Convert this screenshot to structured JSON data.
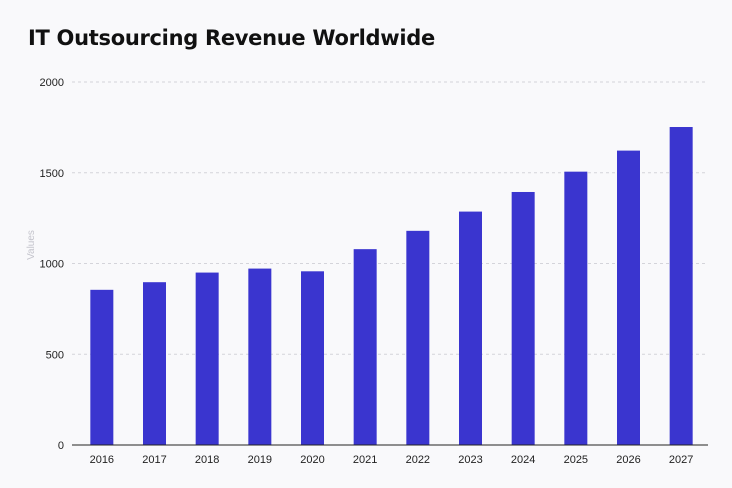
{
  "chart_data": {
    "type": "bar",
    "title": "IT Outsourcing Revenue Worldwide",
    "xlabel": "",
    "ylabel": "Values",
    "categories": [
      "2016",
      "2017",
      "2018",
      "2019",
      "2020",
      "2021",
      "2022",
      "2023",
      "2024",
      "2025",
      "2026",
      "2027"
    ],
    "values": [
      855,
      897,
      950,
      972,
      957,
      1079,
      1180,
      1286,
      1394,
      1506,
      1622,
      1752
    ],
    "ylim": [
      0,
      2000
    ],
    "yticks": [
      0,
      500,
      1000,
      1500,
      2000
    ],
    "grid": true,
    "legend": "none",
    "bar_color": "#3a35cf"
  }
}
